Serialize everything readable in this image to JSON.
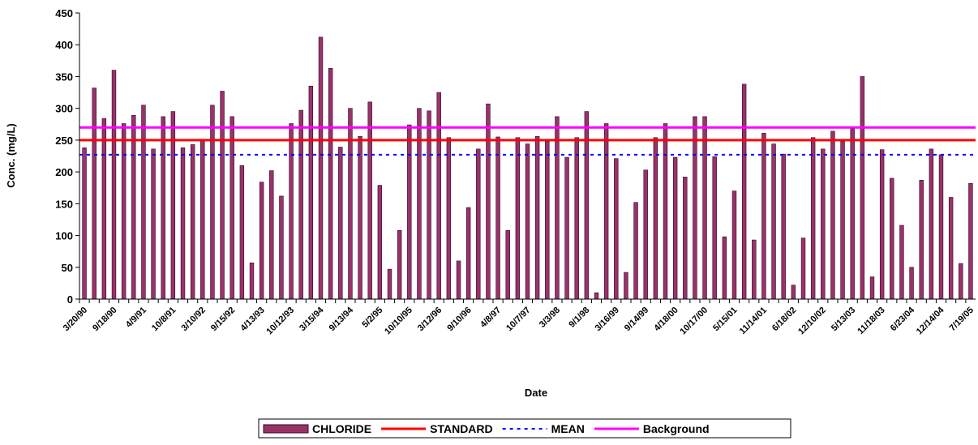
{
  "chart_data": {
    "type": "bar",
    "x_label": "Date",
    "y_label": "Conc. (mg/L)",
    "ylim": [
      0,
      450
    ],
    "yticks": [
      0,
      50,
      100,
      150,
      200,
      250,
      300,
      350,
      400,
      450
    ],
    "grid": false,
    "categories": [
      "3/20/90",
      null,
      null,
      "9/18/90",
      null,
      null,
      "4/9/91",
      null,
      null,
      "10/8/91",
      null,
      null,
      "3/10/92",
      null,
      null,
      "9/15/92",
      null,
      null,
      "4/13/93",
      null,
      null,
      "10/12/93",
      null,
      null,
      "3/15/94",
      null,
      null,
      "9/13/94",
      null,
      null,
      "5/2/95",
      null,
      null,
      "10/10/95",
      null,
      null,
      "3/12/96",
      null,
      null,
      "9/10/96",
      null,
      null,
      "4/8/97",
      null,
      null,
      "10/7/97",
      null,
      null,
      "3/3/98",
      null,
      null,
      "9/1/98",
      null,
      null,
      "3/16/99",
      null,
      null,
      "9/14/99",
      null,
      null,
      "4/18/00",
      null,
      null,
      "10/17/00",
      null,
      null,
      "5/15/01",
      null,
      null,
      "11/14/01",
      null,
      null,
      "6/18/02",
      null,
      null,
      "12/10/02",
      null,
      null,
      "5/13/03",
      null,
      null,
      "11/18/03",
      null,
      null,
      "6/23/04",
      null,
      null,
      "12/14/04",
      null,
      null,
      "7/19/05"
    ],
    "series": [
      {
        "name": "CHLORIDE",
        "color": "#993366",
        "values": [
          238,
          332,
          284,
          360,
          276,
          289,
          305,
          236,
          287,
          295,
          238,
          243,
          250,
          305,
          327,
          287,
          210,
          57,
          184,
          202,
          162,
          276,
          297,
          335,
          412,
          363,
          239,
          300,
          256,
          310,
          179,
          47,
          108,
          274,
          300,
          296,
          325,
          254,
          60,
          144,
          236,
          307,
          255,
          108,
          254,
          244,
          256,
          248,
          287,
          223,
          254,
          295,
          10,
          276,
          221,
          42,
          152,
          203,
          254,
          276,
          223,
          192,
          287,
          287,
          224,
          98,
          170,
          338,
          93,
          261,
          244,
          228,
          22,
          96,
          254,
          236,
          264,
          248,
          268,
          350,
          35,
          235,
          190,
          116,
          50,
          187,
          236,
          227,
          160,
          56,
          182
        ]
      }
    ],
    "lines": [
      {
        "name": "STANDARD",
        "color": "#ff0000",
        "value": 250,
        "dashed": false
      },
      {
        "name": "MEAN",
        "color": "#0000ff",
        "value": 227,
        "dashed": true
      },
      {
        "name": "Background",
        "color": "#ff00ff",
        "value": 270,
        "dashed": false
      }
    ]
  }
}
